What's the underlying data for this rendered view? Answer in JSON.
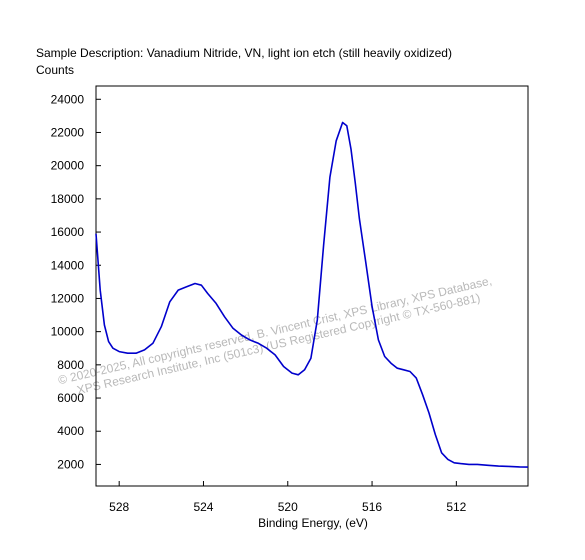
{
  "chart_data": {
    "type": "line",
    "title": "Sample Description:  Vanadium Nitride, VN, light ion etch (still heavily oxidized)",
    "ylabel": "Counts",
    "xlabel": "Binding Energy, (eV)",
    "xlim": [
      529.1,
      508.6
    ],
    "ylim": [
      700,
      24800
    ],
    "x_reversed": true,
    "x_ticks": [
      528,
      524,
      520,
      516,
      512
    ],
    "y_ticks": [
      2000,
      4000,
      6000,
      8000,
      10000,
      12000,
      14000,
      16000,
      18000,
      20000,
      22000,
      24000
    ],
    "grid": false,
    "line_color": "#0000cc",
    "watermark": [
      "© 2020-2025,  All copyrights reserved,   B. Vincent Crist,  XPS Library, XPS Database,",
      "XPS Research Institute, Inc (501c3)   (US Registered Copyright © TX-560-881)"
    ],
    "series": [
      {
        "x": [
          529.1,
          528.9,
          528.7,
          528.5,
          528.3,
          528.0,
          527.6,
          527.2,
          526.8,
          526.4,
          526.0,
          525.6,
          525.2,
          524.8,
          524.4,
          524.1,
          523.8,
          523.4,
          523.0,
          522.6,
          522.2,
          521.8,
          521.4,
          521.0,
          520.6,
          520.2,
          519.8,
          519.5,
          519.2,
          518.9,
          518.6,
          518.3,
          518.0,
          517.7,
          517.4,
          517.2,
          517.0,
          516.8,
          516.6,
          516.3,
          516.0,
          515.7,
          515.4,
          515.1,
          514.8,
          514.5,
          514.2,
          513.9,
          513.6,
          513.3,
          513.0,
          512.7,
          512.4,
          512.1,
          511.8,
          511.4,
          511.0,
          510.5,
          510.0,
          509.5,
          509.0,
          508.6
        ],
        "y": [
          15900,
          12500,
          10400,
          9400,
          9000,
          8800,
          8700,
          8700,
          8900,
          9300,
          10300,
          11800,
          12500,
          12700,
          12900,
          12800,
          12300,
          11700,
          10900,
          10200,
          9800,
          9500,
          9300,
          9000,
          8600,
          7900,
          7500,
          7400,
          7700,
          8400,
          10700,
          15200,
          19300,
          21500,
          22600,
          22400,
          21000,
          19000,
          16800,
          14200,
          11500,
          9500,
          8500,
          8100,
          7800,
          7700,
          7600,
          7200,
          6200,
          5100,
          3800,
          2700,
          2300,
          2100,
          2050,
          2000,
          2000,
          1950,
          1900,
          1880,
          1850,
          1840
        ]
      }
    ]
  }
}
